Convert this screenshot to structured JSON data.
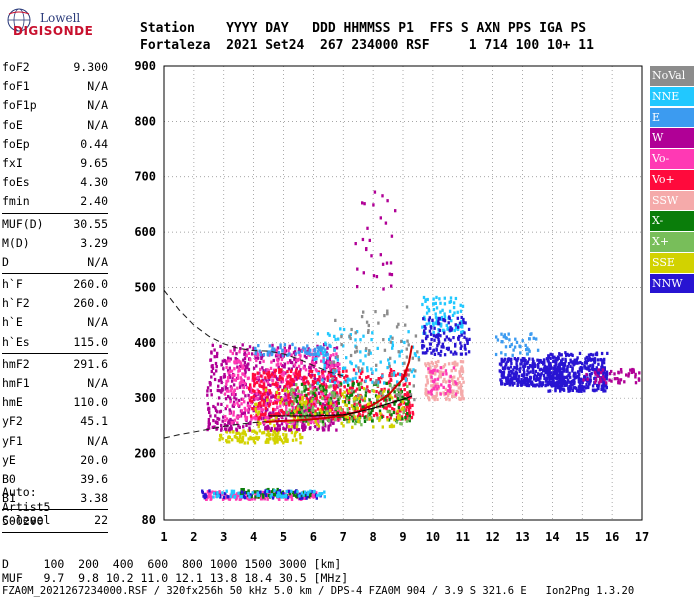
{
  "logo": {
    "line1": "Lowell",
    "line2": "DIGISONDE"
  },
  "header": {
    "row1": "Station    YYYY DAY   DDD HHMMSS P1  FFS S AXN PPS IGA PS",
    "row2": "Fortaleza  2021 Set24  267 234000 RSF     1 714 100 10+ 11"
  },
  "parameters": [
    {
      "name": "foF2",
      "value": "9.300"
    },
    {
      "name": "foF1",
      "value": "N/A"
    },
    {
      "name": "foF1p",
      "value": "N/A"
    },
    {
      "name": "foE",
      "value": "N/A"
    },
    {
      "name": "foEp",
      "value": "0.44"
    },
    {
      "name": "fxI",
      "value": "9.65"
    },
    {
      "name": "foEs",
      "value": "4.30"
    },
    {
      "name": "fmin",
      "value": "2.40"
    },
    {
      "sep": true
    },
    {
      "name": "MUF(D)",
      "value": "30.55"
    },
    {
      "name": "M(D)",
      "value": "3.29"
    },
    {
      "name": "D",
      "value": "N/A"
    },
    {
      "sep": true
    },
    {
      "name": "h`F",
      "value": "260.0"
    },
    {
      "name": "h`F2",
      "value": "260.0"
    },
    {
      "name": "h`E",
      "value": "N/A"
    },
    {
      "name": "h`Es",
      "value": "115.0"
    },
    {
      "sep": true
    },
    {
      "name": "hmF2",
      "value": "291.6"
    },
    {
      "name": "hmF1",
      "value": "N/A"
    },
    {
      "name": "hmE",
      "value": "110.0"
    },
    {
      "name": "yF2",
      "value": "45.1"
    },
    {
      "name": "yF1",
      "value": "N/A"
    },
    {
      "name": "yE",
      "value": "20.0"
    },
    {
      "name": "B0",
      "value": "39.6"
    },
    {
      "name": "B1",
      "value": "3.38"
    },
    {
      "sep": true
    },
    {
      "name": "C-level",
      "value": "22"
    },
    {
      "sep": true
    }
  ],
  "auto": {
    "line1": "Auto:",
    "line2": "Artist5",
    "line3": "500200"
  },
  "legend": [
    {
      "label": "NoVal",
      "color": "#8c8c8c"
    },
    {
      "label": "NNE",
      "color": "#21c8ff"
    },
    {
      "label": "E",
      "color": "#3c9bf0"
    },
    {
      "label": "W",
      "color": "#b00096"
    },
    {
      "label": "Vo-",
      "color": "#ff39b4"
    },
    {
      "label": "Vo+",
      "color": "#ff0a3c"
    },
    {
      "label": "SSW",
      "color": "#f5aaaa"
    },
    {
      "label": "X-",
      "color": "#0a7d0a"
    },
    {
      "label": "X+",
      "color": "#78be5a"
    },
    {
      "label": "SSE",
      "color": "#d2d200"
    },
    {
      "label": "NNW",
      "color": "#2814d2"
    }
  ],
  "footer": {
    "line1": "D     100  200  400  600  800 1000 1500 3000 [km]",
    "line2": "MUF   9.7  9.8 10.2 11.0 12.1 13.8 18.4 30.5 [MHz]",
    "fileline": "FZA0M_2021267234000.RSF / 320fx256h 50 kHz 5.0 km / DPS-4 FZA0M 904 / 3.9 S 321.6 E   Ion2Png 1.3.20"
  },
  "chart_data": {
    "type": "scatter",
    "xlim": [
      1,
      17
    ],
    "ylim": [
      80,
      900
    ],
    "x_ticks": [
      1,
      2,
      3,
      4,
      5,
      6,
      7,
      8,
      9,
      10,
      11,
      12,
      13,
      14,
      15,
      16,
      17
    ],
    "y_ticks": [
      80,
      200,
      300,
      400,
      500,
      600,
      700,
      800,
      900
    ],
    "grid": true,
    "profile_dashed": [
      [
        1,
        495
      ],
      [
        1.5,
        460
      ],
      [
        2,
        432
      ],
      [
        2.5,
        412
      ],
      [
        3,
        398
      ],
      [
        3.5,
        390
      ],
      [
        4,
        386
      ],
      [
        4.5,
        385
      ],
      [
        5,
        380
      ],
      [
        5.5,
        371
      ],
      [
        6,
        359
      ],
      [
        6.5,
        348
      ],
      [
        7,
        340
      ]
    ],
    "profile_dashed_lower": [
      [
        1,
        228
      ],
      [
        1.5,
        234
      ],
      [
        2,
        239
      ],
      [
        2.5,
        244
      ],
      [
        3,
        249
      ],
      [
        3.5,
        253
      ],
      [
        4,
        256
      ],
      [
        4.5,
        258
      ]
    ],
    "trace_main": [
      [
        4.4,
        257
      ],
      [
        5,
        259
      ],
      [
        5.5,
        260
      ],
      [
        6,
        262
      ],
      [
        6.5,
        265
      ],
      [
        7,
        269
      ],
      [
        7.5,
        276
      ],
      [
        8,
        288
      ],
      [
        8.5,
        305
      ],
      [
        9,
        335
      ],
      [
        9.2,
        365
      ],
      [
        9.3,
        395
      ]
    ],
    "trace_solid_lower": [
      [
        4.5,
        268
      ],
      [
        5,
        268
      ],
      [
        6,
        268
      ],
      [
        7,
        270
      ],
      [
        7.5,
        275
      ],
      [
        8,
        282
      ],
      [
        8.5,
        290
      ],
      [
        9,
        298
      ],
      [
        9.3,
        304
      ]
    ],
    "echo_clusters": [
      {
        "x": [
          2.8,
          5.6
        ],
        "y": [
          222,
          245
        ],
        "color": "#d2d200",
        "n": 120
      },
      {
        "x": [
          2.4,
          6.8
        ],
        "y": [
          245,
          400
        ],
        "color": "#b00096",
        "n": 650
      },
      {
        "x": [
          3.0,
          6.9
        ],
        "y": [
          258,
          390
        ],
        "color": "#ff39b4",
        "n": 380
      },
      {
        "x": [
          3.8,
          9.3
        ],
        "y": [
          265,
          355
        ],
        "color": "#ff0a3c",
        "n": 520
      },
      {
        "x": [
          5.2,
          9.2
        ],
        "y": [
          260,
          330
        ],
        "color": "#0a7d0a",
        "n": 160
      },
      {
        "x": [
          5.0,
          9.2
        ],
        "y": [
          255,
          330
        ],
        "color": "#78be5a",
        "n": 120
      },
      {
        "x": [
          4.0,
          9.0
        ],
        "y": [
          250,
          320
        ],
        "color": "#d2d200",
        "n": 110
      },
      {
        "x": [
          4.0,
          6.5
        ],
        "y": [
          380,
          400
        ],
        "color": "#3c9bf0",
        "n": 70
      },
      {
        "x": [
          6.0,
          9.5
        ],
        "y": [
          330,
          430
        ],
        "color": "#21c8ff",
        "n": 110
      },
      {
        "x": [
          6.5,
          9.5
        ],
        "y": [
          300,
          470
        ],
        "color": "#8c8c8c",
        "n": 80
      },
      {
        "x": [
          2.3,
          6.1
        ],
        "y": [
          120,
          134
        ],
        "color": "#ff39b4",
        "n": 160
      },
      {
        "x": [
          3.5,
          5.9
        ],
        "y": [
          124,
          138
        ],
        "color": "#0a7d0a",
        "n": 70
      },
      {
        "x": [
          2.2,
          6.5
        ],
        "y": [
          122,
          136
        ],
        "color": "#2814d2",
        "n": 50
      },
      {
        "x": [
          2.6,
          6.4
        ],
        "y": [
          124,
          136
        ],
        "color": "#21c8ff",
        "n": 60
      },
      {
        "x": [
          9.6,
          11.0
        ],
        "y": [
          420,
          485
        ],
        "color": "#21c8ff",
        "n": 90
      },
      {
        "x": [
          9.6,
          11.2
        ],
        "y": [
          380,
          450
        ],
        "color": "#2814d2",
        "n": 120
      },
      {
        "x": [
          9.7,
          11.0
        ],
        "y": [
          300,
          370
        ],
        "color": "#f5aaaa",
        "n": 150
      },
      {
        "x": [
          9.8,
          10.8
        ],
        "y": [
          310,
          360
        ],
        "color": "#ff39b4",
        "n": 40
      },
      {
        "x": [
          12.2,
          14.5
        ],
        "y": [
          325,
          375
        ],
        "color": "#2814d2",
        "n": 360
      },
      {
        "x": [
          13.8,
          15.8
        ],
        "y": [
          315,
          385
        ],
        "color": "#2814d2",
        "n": 360
      },
      {
        "x": [
          12.0,
          13.5
        ],
        "y": [
          380,
          420
        ],
        "color": "#3c9bf0",
        "n": 40
      },
      {
        "x": [
          15.0,
          16.9
        ],
        "y": [
          330,
          355
        ],
        "color": "#b00096",
        "n": 50
      },
      {
        "x": [
          7.3,
          8.7
        ],
        "y": [
          500,
          680
        ],
        "color": "#b00096",
        "n": 30
      }
    ]
  }
}
